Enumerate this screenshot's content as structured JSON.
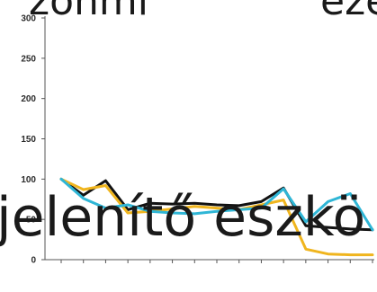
{
  "header": {
    "left_fragment": "zonmi",
    "right_fragment": "eze"
  },
  "overlay": {
    "caption": "jelenítő eszkö"
  },
  "colors": {
    "black_series": "#111111",
    "yellow_series": "#f0b51e",
    "cyan_series": "#2fb6d6",
    "axis": "#555555",
    "tick": "#2b2b2b"
  },
  "chart_data": {
    "type": "line",
    "title": "",
    "xlabel": "",
    "ylabel": "",
    "ylim": [
      0,
      300
    ],
    "yticks": [
      0,
      50,
      100,
      150,
      200,
      250,
      300
    ],
    "x": [
      1,
      2,
      3,
      4,
      5,
      6,
      7,
      8,
      9,
      10,
      11,
      12,
      13,
      14,
      15
    ],
    "grid": false,
    "series": [
      {
        "color": "#111111",
        "values": [
          100,
          80,
          98,
          62,
          70,
          69,
          70,
          68,
          67,
          72,
          89,
          42,
          40,
          38,
          37
        ]
      },
      {
        "color": "#f0b51e",
        "values": [
          100,
          87,
          92,
          58,
          60,
          63,
          66,
          64,
          62,
          68,
          74,
          13,
          7,
          6,
          6
        ]
      },
      {
        "color": "#2fb6d6",
        "values": [
          100,
          76,
          64,
          68,
          60,
          58,
          57,
          60,
          62,
          64,
          88,
          47,
          72,
          82,
          37
        ]
      }
    ]
  }
}
